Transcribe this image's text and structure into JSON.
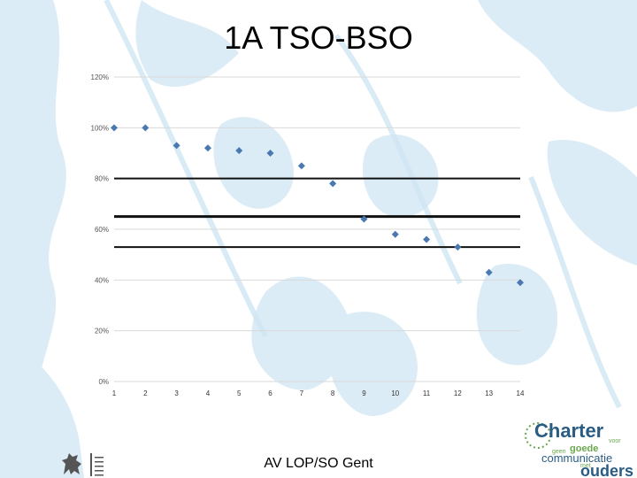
{
  "title": "1A TSO-BSO",
  "footer": "AV LOP/SO Gent",
  "colors": {
    "marker": "#4a78b0",
    "foliage": "#c9e3f2",
    "gridline": "#d9d9d9",
    "refline": "#111111",
    "charter_dark": "#2a5c84",
    "charter_green": "#6aa84f"
  },
  "icons": {
    "government_logo": "flemish-lion-icon",
    "charter_logo": "charter-logo"
  },
  "charter_logo": {
    "line1": "Charter",
    "word_voor": "voor",
    "word_geen": "geen",
    "word_goede": "goede",
    "line3": "communicatie",
    "word_met": "met",
    "line4": "ouders"
  },
  "chart_data": {
    "type": "scatter",
    "title": "",
    "xlabel": "",
    "ylabel": "",
    "x": [
      1,
      2,
      3,
      4,
      5,
      6,
      7,
      8,
      9,
      10,
      11,
      12,
      13,
      14
    ],
    "y": [
      1.0,
      1.0,
      0.93,
      0.92,
      0.91,
      0.9,
      0.85,
      0.78,
      0.64,
      0.58,
      0.56,
      0.53,
      0.43,
      0.39
    ],
    "xticks": [
      "1",
      "2",
      "3",
      "4",
      "5",
      "6",
      "7",
      "8",
      "9",
      "10",
      "11",
      "12",
      "13",
      "14"
    ],
    "yticks": [
      "0%",
      "20%",
      "40%",
      "60%",
      "80%",
      "100%",
      "120%"
    ],
    "ylim": [
      0,
      1.2
    ],
    "xlim": [
      1,
      14
    ],
    "grid": true,
    "reference_lines": [
      0.8,
      0.65,
      0.53
    ]
  }
}
